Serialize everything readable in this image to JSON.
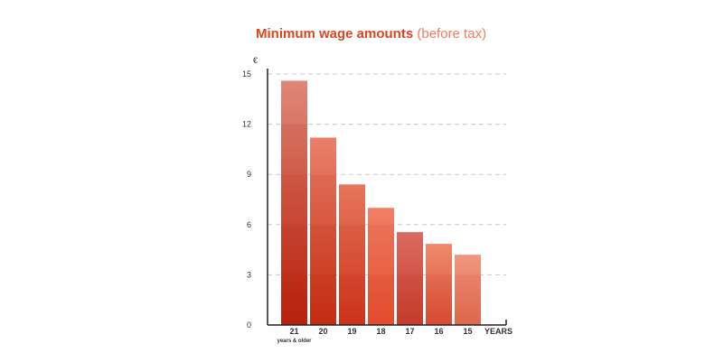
{
  "title": {
    "main": "Minimum wage amounts",
    "sub": "(before tax)"
  },
  "chart_data": {
    "type": "bar",
    "title": "Minimum wage amounts (before tax)",
    "ylabel": "€",
    "xlabel": "YEARS",
    "categories": [
      "21",
      "20",
      "19",
      "18",
      "17",
      "16",
      "15"
    ],
    "category_sublabels": [
      "years & older",
      "",
      "",
      "",
      "",
      "",
      ""
    ],
    "values": [
      14.6,
      11.2,
      8.4,
      7.0,
      5.55,
      4.85,
      4.2
    ],
    "ylim": [
      0,
      15
    ],
    "yticks": [
      0,
      3,
      6,
      9,
      12,
      15
    ],
    "grid": true,
    "colors": {
      "bar_top": [
        "#de8778",
        "#e8806a",
        "#e5755b",
        "#f07f66",
        "#da6a60",
        "#ef8a6c",
        "#f0967f"
      ],
      "bar_bottom": [
        "#c42a12",
        "#cf3619",
        "#d53a21",
        "#f05735",
        "#c93f2e",
        "#dc4f35",
        "#e46f51"
      ],
      "title": "#d9461f",
      "subtitle": "#ee7b5d"
    }
  }
}
